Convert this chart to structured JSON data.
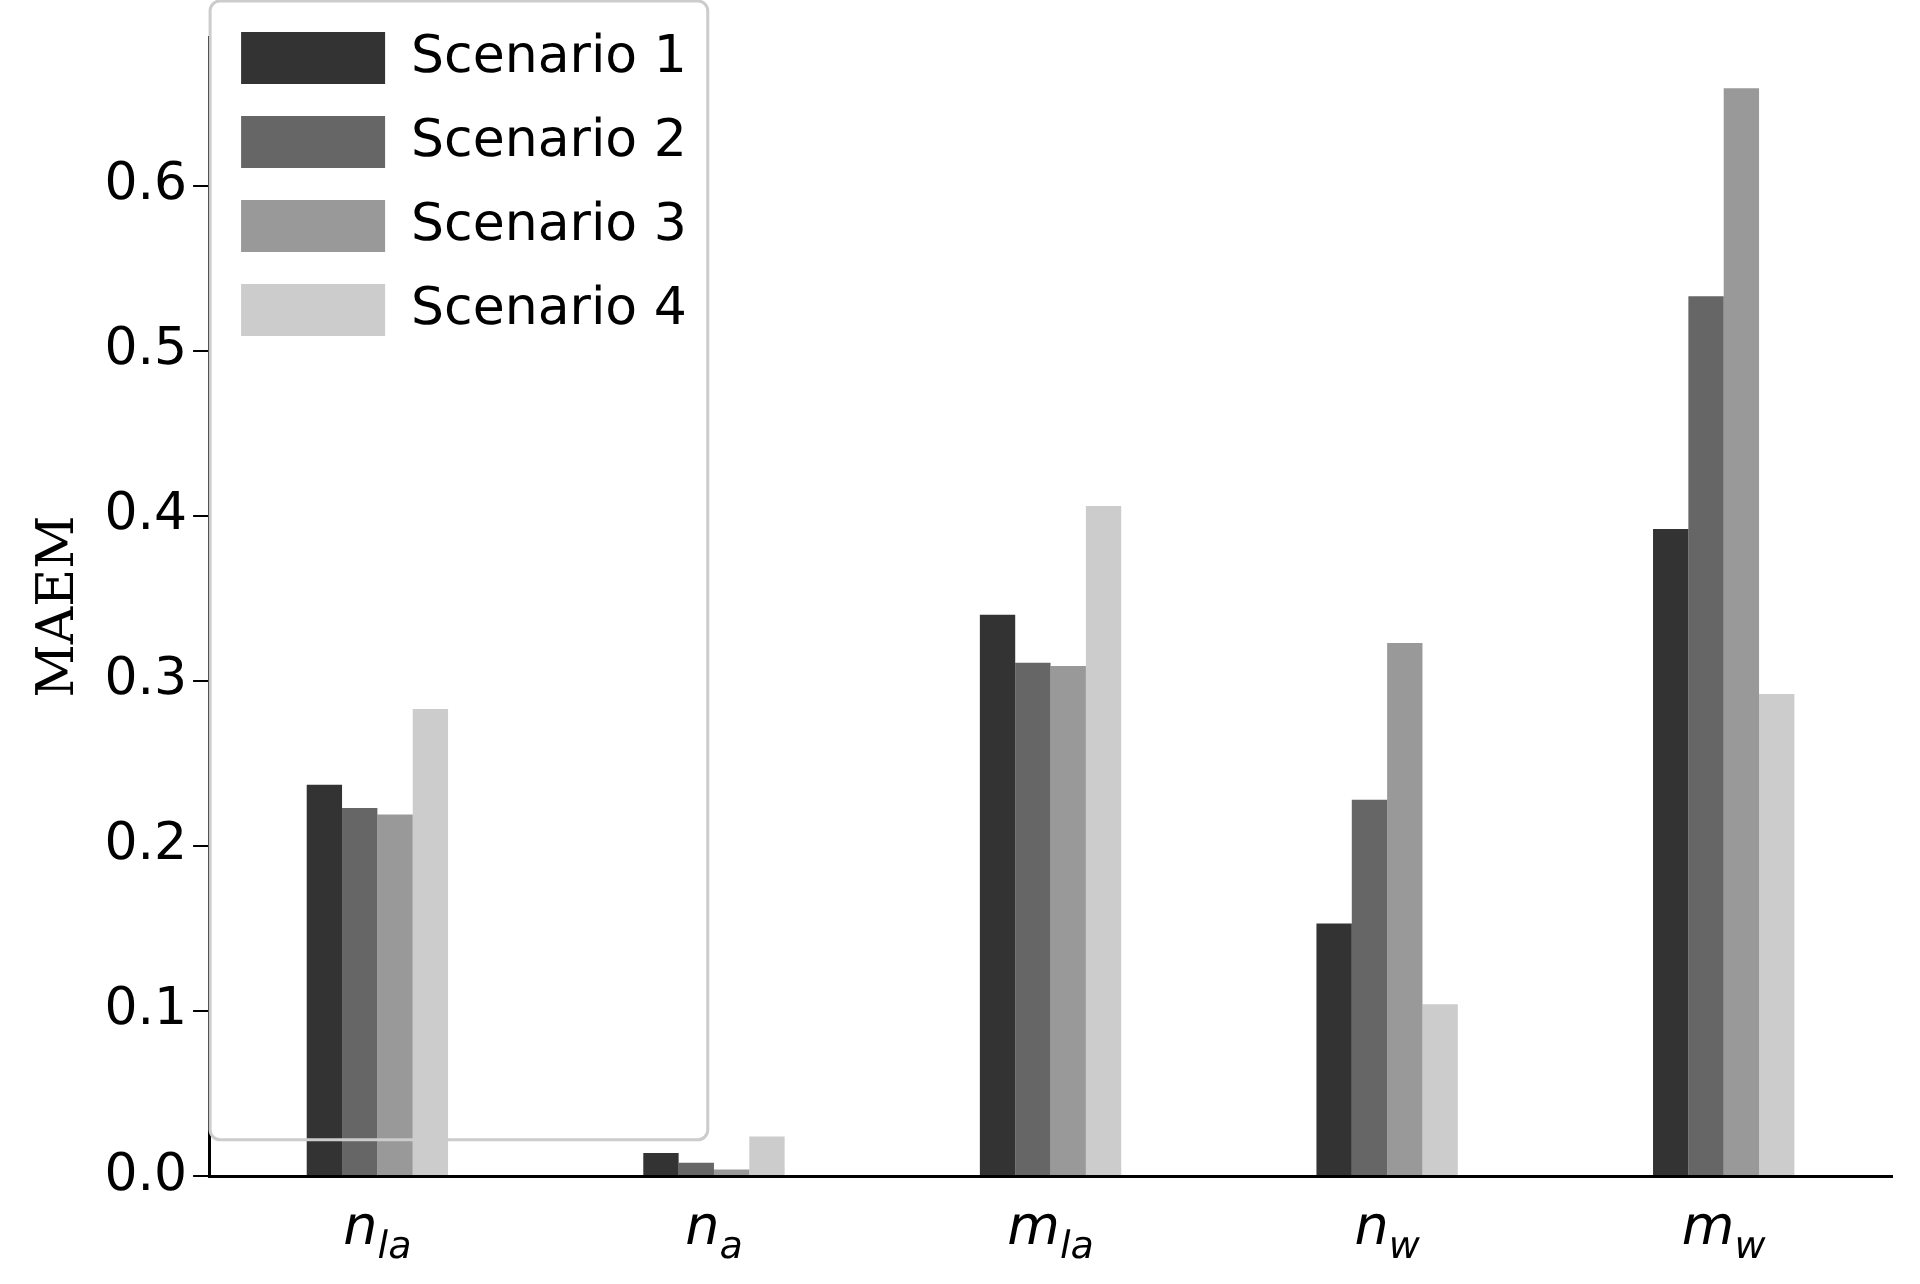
{
  "chart_data": {
    "type": "bar",
    "ylabel": "MAEM",
    "categories": [
      "n$_{la}$",
      "n$_{a}$",
      "m$_{la}$",
      "n$_{w}$",
      "m$_{w}$"
    ],
    "series": [
      {
        "name": "Scenario 1",
        "color": "#333333",
        "values": [
          0.237,
          0.014,
          0.34,
          0.153,
          0.392
        ]
      },
      {
        "name": "Scenario 2",
        "color": "#666666",
        "values": [
          0.223,
          0.008,
          0.311,
          0.228,
          0.533
        ]
      },
      {
        "name": "Scenario 3",
        "color": "#999999",
        "values": [
          0.219,
          0.004,
          0.309,
          0.323,
          0.659
        ]
      },
      {
        "name": "Scenario 4",
        "color": "#cccccc",
        "values": [
          0.283,
          0.024,
          0.406,
          0.104,
          0.292
        ]
      }
    ],
    "ylim": [
      0,
      0.69
    ],
    "yticks": [
      {
        "value": 0,
        "label": "0.0"
      },
      0.1,
      0.2,
      0.3,
      0.4,
      0.5,
      0.6
    ],
    "grid": false,
    "legend": "top left"
  }
}
